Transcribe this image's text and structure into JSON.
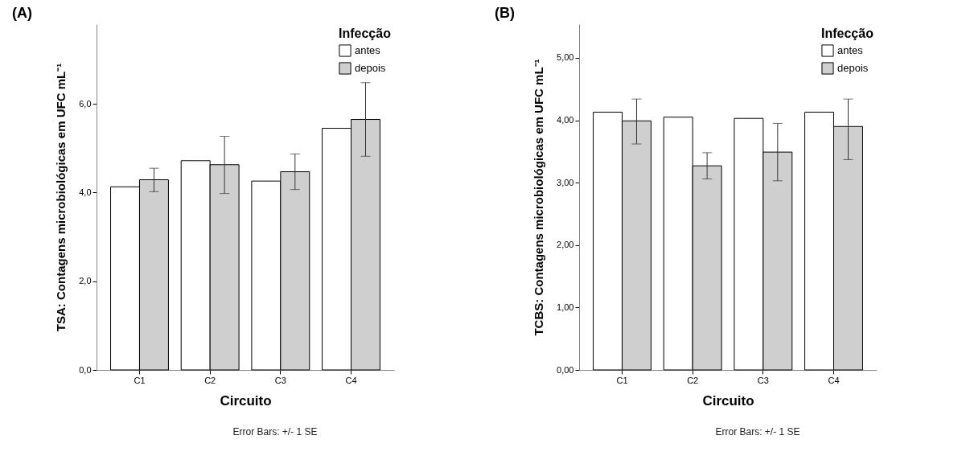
{
  "chart_data": [
    {
      "type": "bar",
      "title": "(A)",
      "xlabel": "Circuito",
      "ylabel": "TSA: Contagens microbiológicas em UFC mL⁻¹",
      "legend_title": "Infecção",
      "legend": "top right",
      "categories": [
        "C1",
        "C2",
        "C3",
        "C4"
      ],
      "series": [
        {
          "name": "antes",
          "color": "#ffffff",
          "values": [
            4.13,
            4.72,
            4.26,
            5.45
          ]
        },
        {
          "name": "depois",
          "color": "#cfcfcf",
          "values": [
            4.29,
            4.63,
            4.47,
            5.65
          ],
          "errors": [
            [
              4.02,
              4.55
            ],
            [
              3.98,
              5.27
            ],
            [
              4.07,
              4.87
            ],
            [
              4.82,
              6.48
            ]
          ]
        }
      ],
      "ylim": [
        0,
        7.8
      ],
      "yticks": [
        {
          "value": 0,
          "label": "0,0"
        },
        {
          "value": 2,
          "label": "2,0"
        },
        {
          "value": 4,
          "label": "4,0"
        },
        {
          "value": 6,
          "label": "6,0"
        }
      ],
      "annotations": [
        "Error Bars: +/- 1 SE"
      ]
    },
    {
      "type": "bar",
      "title": "(B)",
      "xlabel": "Circuito",
      "ylabel": "TCBS: Contagens microbiológicas em UFC mL⁻¹",
      "legend_title": "Infecção",
      "legend": "top right",
      "categories": [
        "C1",
        "C2",
        "C3",
        "C4"
      ],
      "series": [
        {
          "name": "antes",
          "color": "#ffffff",
          "values": [
            4.13,
            4.05,
            4.03,
            4.13
          ]
        },
        {
          "name": "depois",
          "color": "#cfcfcf",
          "values": [
            3.99,
            3.27,
            3.49,
            3.9
          ],
          "errors": [
            [
              3.62,
              4.34
            ],
            [
              3.06,
              3.48
            ],
            [
              3.03,
              3.95
            ],
            [
              3.37,
              4.34
            ]
          ]
        }
      ],
      "ylim": [
        0,
        5.54
      ],
      "yticks": [
        {
          "value": 0,
          "label": "0,00"
        },
        {
          "value": 1,
          "label": "1,00"
        },
        {
          "value": 2,
          "label": "2,00"
        },
        {
          "value": 3,
          "label": "3,00"
        },
        {
          "value": 4,
          "label": "4,00"
        },
        {
          "value": 5,
          "label": "5,00"
        }
      ],
      "annotations": [
        "Error Bars: +/- 1 SE"
      ]
    }
  ]
}
